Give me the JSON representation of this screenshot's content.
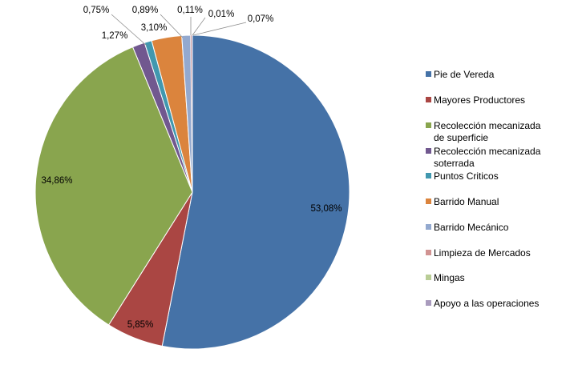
{
  "chart_data": {
    "type": "pie",
    "title": "",
    "start_angle_deg": 0,
    "direction": "clockwise",
    "legend_position": "right",
    "series": [
      {
        "name": "Pie de Vereda",
        "value": 53.08,
        "label": "53,08%",
        "color": "#4572A7"
      },
      {
        "name": "Mayores Productores",
        "value": 5.85,
        "label": "5,85%",
        "color": "#AA4643"
      },
      {
        "name": "Recolección mecanizada de superficie",
        "legend_lines": [
          "Recolección mecanizada",
          "de superficie"
        ],
        "value": 34.86,
        "label": "34,86%",
        "color": "#89A54E"
      },
      {
        "name": "Recolección mecanizada soterrada",
        "legend_lines": [
          "Recolección mecanizada",
          "soterrada"
        ],
        "value": 1.27,
        "label": "1,27%",
        "color": "#71588F"
      },
      {
        "name": "Puntos Criticos",
        "value": 0.75,
        "label": "0,75%",
        "color": "#4198AF"
      },
      {
        "name": "Barrido Manual",
        "value": 3.1,
        "label": "3,10%",
        "color": "#DB843D"
      },
      {
        "name": "Barrido Mecánico",
        "value": 0.89,
        "label": "0,89%",
        "color": "#93A9CF"
      },
      {
        "name": "Limpieza de Mercados",
        "value": 0.11,
        "label": "0,11%",
        "color": "#D19392"
      },
      {
        "name": "Mingas",
        "value": 0.01,
        "label": "0,01%",
        "color": "#B9CD96"
      },
      {
        "name": "Apoyo a las operaciones",
        "value": 0.07,
        "label": "0,07%",
        "color": "#A99BBD"
      }
    ]
  }
}
